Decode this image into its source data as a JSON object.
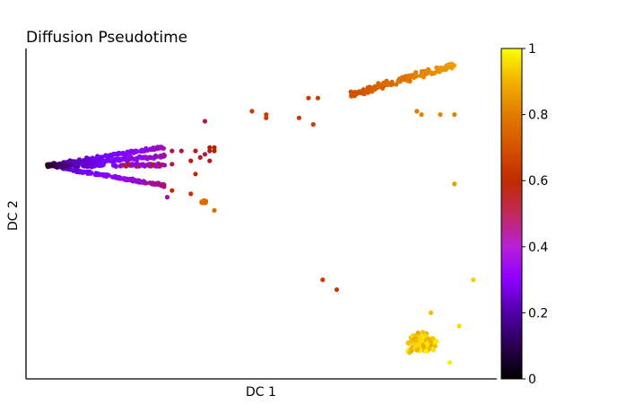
{
  "chart_data": {
    "type": "scatter",
    "title": "Diffusion Pseudotime",
    "xlabel": "DC 1",
    "ylabel": "DC 2",
    "grid": false,
    "legend": "none",
    "colorbar": {
      "range": [
        0,
        1
      ],
      "ticks": [
        "0",
        "0.2",
        "0.4",
        "0.6",
        "0.8",
        "1"
      ],
      "tick_values": [
        0,
        0.2,
        0.4,
        0.6,
        0.8,
        1.0
      ],
      "colormap": "gnuplot"
    },
    "groups": [
      {
        "name": "left dense arc (DC1 low, DC2 mid-upper)",
        "x": [
          0.03,
          0.29
        ],
        "y": [
          0.55,
          0.73
        ],
        "pseudotime": [
          0.0,
          0.5
        ],
        "approx_points": 500
      },
      {
        "name": "scatter from arc",
        "x": [
          0.3,
          0.4
        ],
        "y": [
          0.5,
          0.78
        ],
        "pseudotime": [
          0.35,
          0.55
        ]
      },
      {
        "name": "small middle-left cluster",
        "x": [
          0.36,
          0.4
        ],
        "y": [
          0.52,
          0.55
        ],
        "pseudotime": [
          0.72,
          0.8
        ]
      },
      {
        "name": "upper-right cluster",
        "x": [
          0.69,
          0.91
        ],
        "y": [
          0.86,
          0.96
        ],
        "pseudotime": [
          0.65,
          0.9
        ]
      },
      {
        "name": "lower-right cluster",
        "x": [
          0.78,
          0.93
        ],
        "y": [
          0.05,
          0.17
        ],
        "pseudotime": [
          0.85,
          1.0
        ]
      }
    ]
  }
}
